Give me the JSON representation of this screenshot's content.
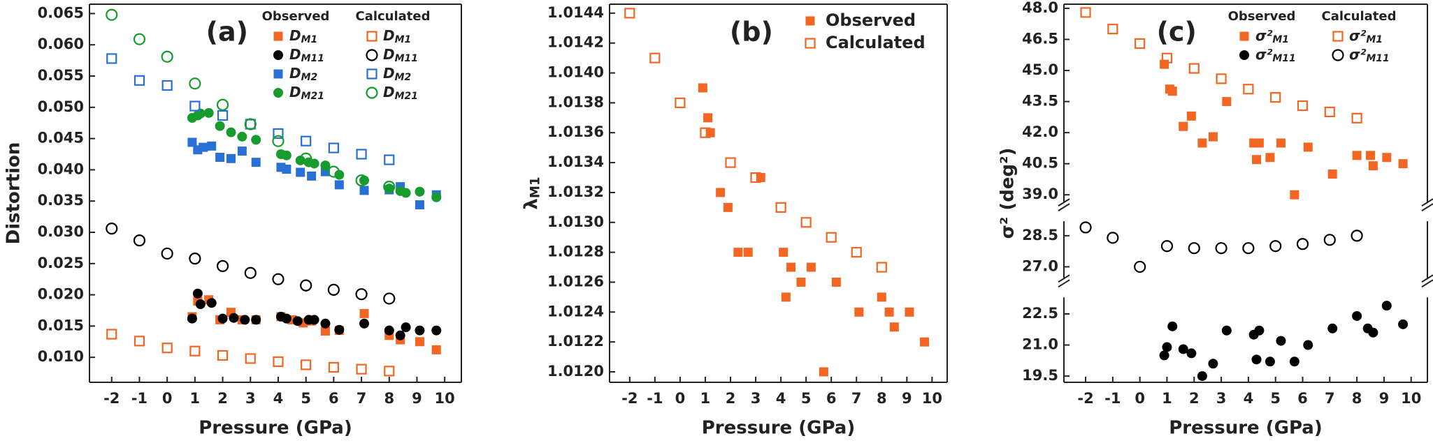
{
  "chart_data": [
    {
      "type": "scatter",
      "label": "(a)",
      "xlabel": "Pressure (GPa)",
      "ylabel": "Distortion",
      "xlim": [
        -2.8,
        10.6
      ],
      "xticks": [
        -2,
        -1,
        0,
        1,
        2,
        3,
        4,
        5,
        6,
        7,
        8,
        9,
        10
      ],
      "ylim": [
        0.006,
        0.0665
      ],
      "yticks": [
        {
          "value": 0.01,
          "label": "0.010"
        },
        0.015,
        {
          "value": 0.02,
          "label": "0.020"
        },
        0.025,
        {
          "value": 0.03,
          "label": "0.030"
        },
        0.035,
        {
          "value": 0.04,
          "label": "0.040"
        },
        0.045,
        {
          "value": 0.05,
          "label": "0.050"
        },
        0.055,
        {
          "value": 0.06,
          "label": "0.060"
        },
        0.065
      ],
      "legend_headers": [
        "Observed",
        "Calculated"
      ],
      "series": [
        {
          "name": "DM1",
          "color": "#f26522",
          "marker": "square",
          "filled": true,
          "x": [
            0.9,
            1.1,
            1.5,
            1.9,
            2.3,
            2.7,
            3.2,
            4.1,
            4.5,
            4.9,
            5.2,
            5.7,
            6.2,
            7.1,
            8.0,
            8.4,
            9.1,
            9.7
          ],
          "values": [
            0.0165,
            0.019,
            0.0192,
            0.016,
            0.0172,
            0.016,
            0.016,
            0.0165,
            0.016,
            0.0155,
            0.0158,
            0.0142,
            0.0143,
            0.017,
            0.0135,
            0.0128,
            0.0125,
            0.0112
          ]
        },
        {
          "name": "DM11",
          "color": "#000000",
          "marker": "circle",
          "filled": true,
          "x": [
            0.9,
            1.1,
            1.2,
            1.6,
            2.0,
            2.4,
            2.8,
            3.2,
            4.1,
            4.3,
            4.7,
            5.1,
            5.3,
            5.7,
            6.2,
            7.1,
            8.0,
            8.4,
            8.6,
            9.1,
            9.7
          ],
          "values": [
            0.0162,
            0.0202,
            0.0185,
            0.0187,
            0.0162,
            0.0163,
            0.016,
            0.016,
            0.0165,
            0.0162,
            0.0158,
            0.016,
            0.016,
            0.0154,
            0.0144,
            0.0154,
            0.0143,
            0.0135,
            0.0148,
            0.0143,
            0.0143
          ]
        },
        {
          "name": "DM2",
          "color": "#2970d6",
          "marker": "square",
          "filled": true,
          "x": [
            0.9,
            1.1,
            1.3,
            1.6,
            1.9,
            2.3,
            2.7,
            3.2,
            4.1,
            4.3,
            4.8,
            5.2,
            5.7,
            6.2,
            7.1,
            8.0,
            8.4,
            9.1,
            9.7
          ],
          "values": [
            0.0444,
            0.0432,
            0.0436,
            0.0438,
            0.042,
            0.0418,
            0.043,
            0.0412,
            0.0404,
            0.0401,
            0.0396,
            0.039,
            0.0397,
            0.0376,
            0.0367,
            0.0368,
            0.0373,
            0.0344,
            0.036
          ]
        },
        {
          "name": "DM21",
          "color": "#169b2c",
          "marker": "circle",
          "filled": true,
          "x": [
            0.9,
            1.1,
            1.2,
            1.5,
            1.9,
            2.3,
            2.7,
            3.2,
            4.1,
            4.3,
            4.8,
            5.1,
            5.3,
            5.7,
            6.2,
            7.1,
            8.0,
            8.4,
            8.6,
            9.1,
            9.7
          ],
          "values": [
            0.0483,
            0.0487,
            0.049,
            0.0491,
            0.047,
            0.046,
            0.0453,
            0.0448,
            0.0425,
            0.0423,
            0.0415,
            0.0412,
            0.041,
            0.0407,
            0.0392,
            0.0383,
            0.037,
            0.0366,
            0.0363,
            0.0365,
            0.0356
          ]
        },
        {
          "name": "DM1",
          "color": "#f26522",
          "marker": "square",
          "filled": false,
          "x": [
            -2,
            -1,
            0,
            1,
            2,
            3,
            4,
            5,
            6,
            7,
            8
          ],
          "values": [
            0.0137,
            0.0126,
            0.0115,
            0.011,
            0.0103,
            0.0098,
            0.0093,
            0.0088,
            0.0084,
            0.0081,
            0.0078
          ]
        },
        {
          "name": "DM11",
          "color": "#000000",
          "marker": "circle",
          "filled": false,
          "x": [
            -2,
            -1,
            0,
            1,
            2,
            3,
            4,
            5,
            6,
            7,
            8
          ],
          "values": [
            0.0306,
            0.0287,
            0.0266,
            0.0258,
            0.0246,
            0.0235,
            0.0225,
            0.0215,
            0.0208,
            0.0201,
            0.0194
          ]
        },
        {
          "name": "DM2",
          "color": "#2970d6",
          "marker": "square",
          "filled": false,
          "x": [
            -2,
            -1,
            0,
            1,
            2,
            3,
            4,
            5,
            6,
            7,
            8
          ],
          "values": [
            0.0578,
            0.0543,
            0.0535,
            0.0502,
            0.0487,
            0.0473,
            0.0458,
            0.0446,
            0.0435,
            0.0425,
            0.0416
          ]
        },
        {
          "name": "DM21",
          "color": "#169b2c",
          "marker": "circle",
          "filled": false,
          "x": [
            -2,
            -1,
            0,
            1,
            2,
            3,
            4,
            5,
            6,
            7,
            8
          ],
          "values": [
            0.0648,
            0.0609,
            0.0581,
            0.0538,
            0.0504,
            0.0473,
            0.0446,
            0.0418,
            0.0397,
            0.0383,
            0.0373
          ]
        }
      ]
    },
    {
      "type": "scatter",
      "label": "(b)",
      "xlabel": "Pressure (GPa)",
      "ylabel": "λM1",
      "xlim": [
        -2.8,
        10.6
      ],
      "xticks": [
        -2,
        -1,
        0,
        1,
        2,
        3,
        4,
        5,
        6,
        7,
        8,
        9,
        10
      ],
      "ylim": [
        1.01193,
        1.01446
      ],
      "yticks": [
        {
          "value": 1.012,
          "label": "1.0120"
        },
        1.0122,
        1.0124,
        1.0126,
        1.0128,
        {
          "value": 1.013,
          "label": "1.0130"
        },
        1.0132,
        1.0134,
        1.0136,
        1.0138,
        {
          "value": 1.014,
          "label": "1.0140"
        },
        1.0142,
        1.0144
      ],
      "series": [
        {
          "name": "Observed",
          "color": "#f26522",
          "marker": "square",
          "filled": true,
          "x": [
            0.9,
            1.1,
            1.2,
            1.6,
            1.9,
            2.3,
            2.7,
            3.2,
            4.1,
            4.2,
            4.4,
            4.8,
            5.2,
            5.7,
            6.2,
            7.1,
            8.0,
            8.3,
            8.5,
            9.1,
            9.7
          ],
          "values": [
            1.0139,
            1.0137,
            1.0136,
            1.0132,
            1.0131,
            1.0128,
            1.0128,
            1.0133,
            1.0128,
            1.0125,
            1.0127,
            1.0126,
            1.0127,
            1.012,
            1.0126,
            1.0124,
            1.0125,
            1.0124,
            1.0123,
            1.0124,
            1.0122
          ]
        },
        {
          "name": "Calculated",
          "color": "#f26522",
          "marker": "square",
          "filled": false,
          "x": [
            -2,
            -1,
            0,
            1,
            2,
            3,
            4,
            5,
            6,
            7,
            8
          ],
          "values": [
            1.0144,
            1.0141,
            1.0138,
            1.0136,
            1.0134,
            1.0133,
            1.0131,
            1.013,
            1.0129,
            1.0128,
            1.0127
          ]
        }
      ]
    },
    {
      "type": "scatter",
      "label": "(c)",
      "xlabel": "Pressure (GPa)",
      "ylabel": "σ² (deg²)",
      "xlim": [
        -2.8,
        10.6
      ],
      "xticks": [
        -2,
        -1,
        0,
        1,
        2,
        3,
        4,
        5,
        6,
        7,
        8,
        9,
        10
      ],
      "y_segments": [
        {
          "ylim": [
            19.2,
            23.3
          ],
          "yticks": [
            19.5,
            {
              "value": 21,
              "label": "21.0"
            },
            22.5
          ]
        },
        {
          "ylim": [
            26.4,
            29.2
          ],
          "yticks": [
            {
              "value": 27,
              "label": "27.0"
            },
            28.5
          ]
        },
        {
          "ylim": [
            38.6,
            48.2
          ],
          "yticks": [
            {
              "value": 39,
              "label": "39.0"
            },
            40.5,
            {
              "value": 42,
              "label": "42.0"
            },
            43.5,
            {
              "value": 45,
              "label": "45.0"
            },
            46.5,
            {
              "value": 48,
              "label": "48.0"
            }
          ]
        }
      ],
      "legend_headers": [
        "Observed",
        "Calculated"
      ],
      "series": [
        {
          "name": "σ²M1",
          "color": "#f26522",
          "marker": "square",
          "filled": true,
          "x": [
            0.9,
            1.1,
            1.2,
            1.6,
            1.9,
            2.3,
            2.7,
            3.2,
            4.2,
            4.3,
            4.4,
            4.8,
            5.2,
            5.7,
            6.2,
            7.1,
            8.0,
            8.5,
            8.6,
            9.1,
            9.7
          ],
          "values": [
            45.3,
            44.1,
            44.0,
            42.3,
            42.8,
            41.5,
            41.8,
            43.5,
            41.5,
            40.7,
            41.5,
            40.8,
            41.5,
            39.0,
            41.3,
            40.0,
            40.9,
            40.9,
            40.4,
            40.8,
            40.5
          ]
        },
        {
          "name": "σ²M11",
          "color": "#000000",
          "marker": "circle",
          "filled": true,
          "x": [
            0.9,
            1.0,
            1.2,
            1.6,
            1.9,
            2.3,
            2.7,
            3.2,
            4.2,
            4.3,
            4.4,
            4.8,
            5.2,
            5.7,
            6.2,
            7.1,
            8.0,
            8.4,
            8.6,
            9.1,
            9.7
          ],
          "values": [
            20.5,
            20.9,
            21.9,
            20.8,
            20.6,
            19.5,
            20.1,
            21.7,
            21.5,
            20.3,
            21.7,
            20.2,
            21.2,
            20.2,
            21.0,
            21.8,
            22.4,
            21.8,
            21.6,
            22.9,
            22.0
          ]
        },
        {
          "name": "σ²M1",
          "color": "#f26522",
          "marker": "square",
          "filled": false,
          "x": [
            -2,
            -1,
            0,
            1,
            2,
            3,
            4,
            5,
            6,
            7,
            8
          ],
          "values": [
            47.8,
            47.0,
            46.3,
            45.6,
            45.1,
            44.6,
            44.1,
            43.7,
            43.3,
            43.0,
            42.7
          ]
        },
        {
          "name": "σ²M11",
          "color": "#000000",
          "marker": "circle",
          "filled": false,
          "x": [
            -2,
            -1,
            0,
            1,
            2,
            3,
            4,
            5,
            6,
            7,
            8
          ],
          "values": [
            28.9,
            28.4,
            27.0,
            28.0,
            27.9,
            27.9,
            27.9,
            28.0,
            28.1,
            28.3,
            28.5
          ]
        }
      ]
    }
  ]
}
